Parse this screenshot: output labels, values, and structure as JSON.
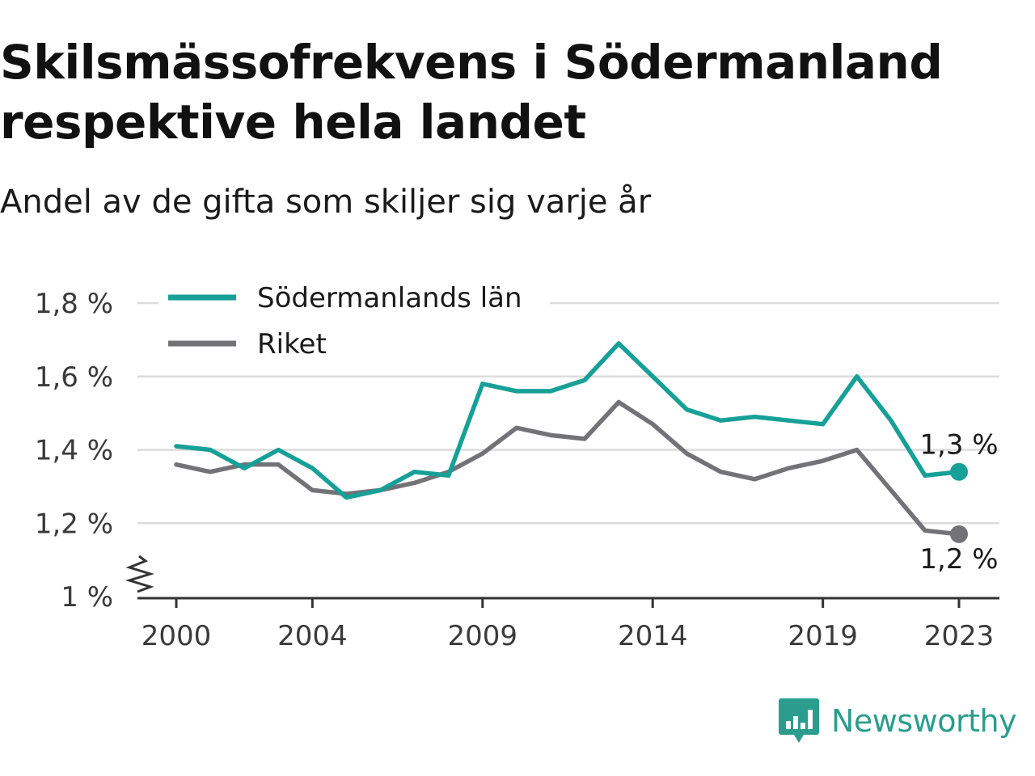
{
  "header": {
    "title": "Skilsmässofrekvens i Södermanland respektive hela landet",
    "subtitle": "Andel av de gifta som skiljer sig varje år"
  },
  "branding": {
    "logo_icon": "bar-chart-speech-bubble-icon",
    "logo_text": "Newsworthy",
    "color": "#2a9d8f"
  },
  "chart_data": {
    "type": "line",
    "x": [
      2000,
      2001,
      2002,
      2003,
      2004,
      2005,
      2006,
      2007,
      2008,
      2009,
      2010,
      2011,
      2012,
      2013,
      2014,
      2015,
      2016,
      2017,
      2018,
      2019,
      2020,
      2021,
      2022,
      2023
    ],
    "x_ticks": [
      "2000",
      "2004",
      "2009",
      "2014",
      "2019",
      "2023"
    ],
    "y_ticks": [
      "1 %",
      "1,2 %",
      "1,4 %",
      "1,6 %",
      "1,8 %"
    ],
    "ylim": [
      1.0,
      1.8
    ],
    "grid": true,
    "legend": "top-left",
    "broken_axis": true,
    "series": [
      {
        "name": "Södermanlands län",
        "color": "#16a097",
        "values": [
          1.41,
          1.4,
          1.35,
          1.4,
          1.35,
          1.27,
          1.29,
          1.34,
          1.33,
          1.58,
          1.56,
          1.56,
          1.59,
          1.69,
          1.6,
          1.51,
          1.48,
          1.49,
          1.48,
          1.47,
          1.6,
          1.48,
          1.33,
          1.34
        ],
        "end_label": "1,3 %"
      },
      {
        "name": "Riket",
        "color": "#737277",
        "values": [
          1.36,
          1.34,
          1.36,
          1.36,
          1.29,
          1.28,
          1.29,
          1.31,
          1.34,
          1.39,
          1.46,
          1.44,
          1.43,
          1.53,
          1.47,
          1.39,
          1.34,
          1.32,
          1.35,
          1.37,
          1.4,
          1.29,
          1.18,
          1.17
        ],
        "end_label": "1,2 %"
      }
    ]
  }
}
